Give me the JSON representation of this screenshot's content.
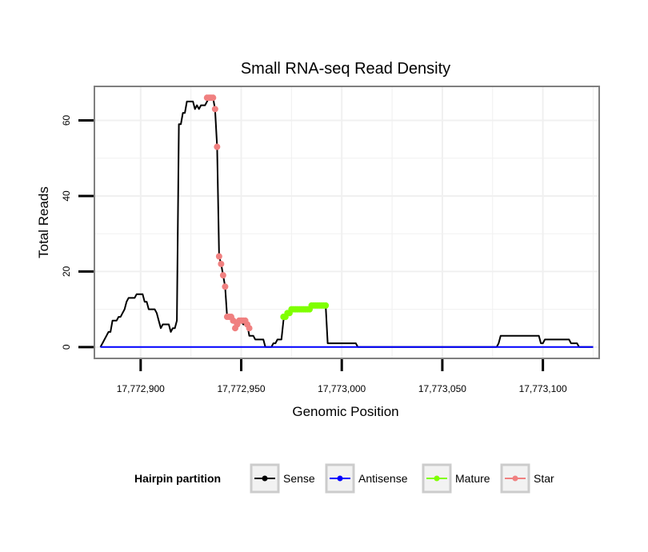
{
  "chart_data": {
    "type": "line",
    "title": "Small RNA-seq Read Density",
    "xlabel": "Genomic Position",
    "ylabel": "Total Reads",
    "xlim": [
      17772877,
      17773128
    ],
    "ylim": [
      -3,
      69
    ],
    "x_ticks": [
      {
        "value": 17772900,
        "label": "17,772,900"
      },
      {
        "value": 17772950,
        "label": "17,772,950"
      },
      {
        "value": 17773000,
        "label": "17,773,000"
      },
      {
        "value": 17773050,
        "label": "17,773,050"
      },
      {
        "value": 17773100,
        "label": "17,773,100"
      }
    ],
    "y_ticks": [
      {
        "value": 0,
        "label": "0"
      },
      {
        "value": 20,
        "label": "20"
      },
      {
        "value": 40,
        "label": "40"
      },
      {
        "value": 60,
        "label": "60"
      }
    ],
    "grid": true,
    "legend": {
      "title": "Hairpin partition",
      "position": "bottom"
    },
    "series": [
      {
        "name": "Sense",
        "color": "#000000",
        "style": "line",
        "points": [
          [
            17772880,
            0
          ],
          [
            17772881,
            1
          ],
          [
            17772882,
            2
          ],
          [
            17772883,
            3
          ],
          [
            17772884,
            4
          ],
          [
            17772885,
            4
          ],
          [
            17772886,
            7
          ],
          [
            17772887,
            7
          ],
          [
            17772888,
            7
          ],
          [
            17772889,
            8
          ],
          [
            17772890,
            8
          ],
          [
            17772891,
            9
          ],
          [
            17772892,
            10
          ],
          [
            17772893,
            12
          ],
          [
            17772894,
            13
          ],
          [
            17772895,
            13
          ],
          [
            17772896,
            13
          ],
          [
            17772897,
            13
          ],
          [
            17772898,
            14
          ],
          [
            17772899,
            14
          ],
          [
            17772900,
            14
          ],
          [
            17772901,
            14
          ],
          [
            17772902,
            12
          ],
          [
            17772903,
            12
          ],
          [
            17772904,
            10
          ],
          [
            17772905,
            10
          ],
          [
            17772906,
            10
          ],
          [
            17772907,
            10
          ],
          [
            17772908,
            9
          ],
          [
            17772909,
            7
          ],
          [
            17772910,
            5
          ],
          [
            17772911,
            6
          ],
          [
            17772912,
            6
          ],
          [
            17772913,
            6
          ],
          [
            17772914,
            6
          ],
          [
            17772915,
            4
          ],
          [
            17772916,
            5
          ],
          [
            17772917,
            5
          ],
          [
            17772918,
            7
          ],
          [
            17772919,
            59
          ],
          [
            17772920,
            59
          ],
          [
            17772921,
            62
          ],
          [
            17772922,
            62
          ],
          [
            17772923,
            65
          ],
          [
            17772924,
            65
          ],
          [
            17772925,
            65
          ],
          [
            17772926,
            65
          ],
          [
            17772927,
            63
          ],
          [
            17772928,
            64
          ],
          [
            17772929,
            63
          ],
          [
            17772930,
            64
          ],
          [
            17772931,
            64
          ],
          [
            17772932,
            64
          ],
          [
            17772933,
            65
          ],
          [
            17772934,
            66
          ],
          [
            17772935,
            66
          ],
          [
            17772936,
            66
          ],
          [
            17772937,
            63
          ],
          [
            17772938,
            53
          ],
          [
            17772939,
            24
          ],
          [
            17772940,
            22
          ],
          [
            17772941,
            19
          ],
          [
            17772942,
            16
          ],
          [
            17772943,
            8
          ],
          [
            17772944,
            8
          ],
          [
            17772945,
            8
          ],
          [
            17772946,
            7
          ],
          [
            17772947,
            6
          ],
          [
            17772948,
            6
          ],
          [
            17772949,
            7
          ],
          [
            17772950,
            7
          ],
          [
            17772951,
            6
          ],
          [
            17772952,
            6
          ],
          [
            17772953,
            6
          ],
          [
            17772954,
            3
          ],
          [
            17772955,
            3
          ],
          [
            17772956,
            3
          ],
          [
            17772957,
            2
          ],
          [
            17772958,
            2
          ],
          [
            17772959,
            2
          ],
          [
            17772960,
            2
          ],
          [
            17772961,
            2
          ],
          [
            17772962,
            0
          ],
          [
            17772963,
            0
          ],
          [
            17772964,
            0
          ],
          [
            17772965,
            0
          ],
          [
            17772966,
            1
          ],
          [
            17772967,
            1
          ],
          [
            17772968,
            2
          ],
          [
            17772969,
            2
          ],
          [
            17772970,
            2
          ],
          [
            17772971,
            7
          ],
          [
            17772972,
            9
          ],
          [
            17772973,
            9
          ],
          [
            17772974,
            9
          ],
          [
            17772975,
            10
          ],
          [
            17772976,
            10
          ],
          [
            17772977,
            10
          ],
          [
            17772978,
            10
          ],
          [
            17772979,
            10
          ],
          [
            17772980,
            10
          ],
          [
            17772981,
            10
          ],
          [
            17772982,
            10
          ],
          [
            17772983,
            10
          ],
          [
            17772984,
            10
          ],
          [
            17772985,
            11
          ],
          [
            17772986,
            11
          ],
          [
            17772987,
            11
          ],
          [
            17772988,
            11
          ],
          [
            17772989,
            11
          ],
          [
            17772990,
            11
          ],
          [
            17772991,
            11
          ],
          [
            17772992,
            11
          ],
          [
            17772993,
            1
          ],
          [
            17772994,
            1
          ],
          [
            17772995,
            1
          ],
          [
            17772996,
            1
          ],
          [
            17772997,
            1
          ],
          [
            17772998,
            1
          ],
          [
            17772999,
            1
          ],
          [
            17773000,
            1
          ],
          [
            17773001,
            1
          ],
          [
            17773002,
            1
          ],
          [
            17773003,
            1
          ],
          [
            17773004,
            1
          ],
          [
            17773005,
            1
          ],
          [
            17773006,
            1
          ],
          [
            17773007,
            1
          ],
          [
            17773008,
            0
          ],
          [
            17773020,
            0
          ],
          [
            17773040,
            0
          ],
          [
            17773060,
            0
          ],
          [
            17773076,
            0
          ],
          [
            17773077,
            0
          ],
          [
            17773078,
            1
          ],
          [
            17773079,
            3
          ],
          [
            17773080,
            3
          ],
          [
            17773085,
            3
          ],
          [
            17773090,
            3
          ],
          [
            17773095,
            3
          ],
          [
            17773098,
            3
          ],
          [
            17773099,
            1
          ],
          [
            17773100,
            1
          ],
          [
            17773101,
            2
          ],
          [
            17773105,
            2
          ],
          [
            17773110,
            2
          ],
          [
            17773113,
            2
          ],
          [
            17773114,
            1
          ],
          [
            17773115,
            1
          ],
          [
            17773116,
            1
          ],
          [
            17773117,
            1
          ],
          [
            17773118,
            0
          ],
          [
            17773125,
            0
          ]
        ]
      },
      {
        "name": "Antisense",
        "color": "#0000ff",
        "style": "line",
        "points": [
          [
            17772880,
            0
          ],
          [
            17773125,
            0
          ]
        ]
      },
      {
        "name": "Mature",
        "color": "#7fff00",
        "style": "points",
        "points": [
          [
            17772971,
            8
          ],
          [
            17772972,
            8
          ],
          [
            17772973,
            9
          ],
          [
            17772974,
            9
          ],
          [
            17772975,
            10
          ],
          [
            17772976,
            10
          ],
          [
            17772977,
            10
          ],
          [
            17772978,
            10
          ],
          [
            17772979,
            10
          ],
          [
            17772980,
            10
          ],
          [
            17772981,
            10
          ],
          [
            17772982,
            10
          ],
          [
            17772983,
            10
          ],
          [
            17772984,
            10
          ],
          [
            17772985,
            11
          ],
          [
            17772986,
            11
          ],
          [
            17772987,
            11
          ],
          [
            17772988,
            11
          ],
          [
            17772989,
            11
          ],
          [
            17772990,
            11
          ],
          [
            17772991,
            11
          ],
          [
            17772992,
            11
          ]
        ]
      },
      {
        "name": "Star",
        "color": "#f08080",
        "style": "points",
        "points": [
          [
            17772933,
            66
          ],
          [
            17772934,
            66
          ],
          [
            17772935,
            66
          ],
          [
            17772936,
            66
          ],
          [
            17772937,
            63
          ],
          [
            17772938,
            53
          ],
          [
            17772939,
            24
          ],
          [
            17772940,
            22
          ],
          [
            17772941,
            19
          ],
          [
            17772942,
            16
          ],
          [
            17772943,
            8
          ],
          [
            17772944,
            8
          ],
          [
            17772945,
            8
          ],
          [
            17772946,
            7
          ],
          [
            17772947,
            5
          ],
          [
            17772948,
            6
          ],
          [
            17772949,
            7
          ],
          [
            17772950,
            7
          ],
          [
            17772951,
            7
          ],
          [
            17772952,
            7
          ],
          [
            17772953,
            6
          ],
          [
            17772954,
            5
          ]
        ]
      }
    ]
  }
}
